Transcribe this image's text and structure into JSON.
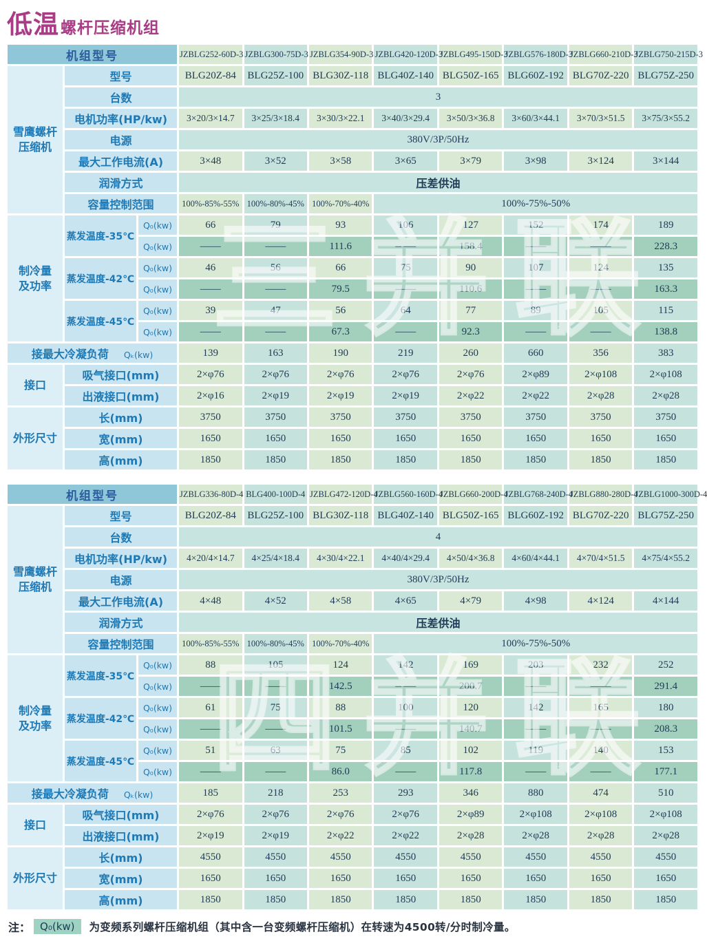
{
  "title": {
    "highlight": "低温",
    "rest": "螺杆压缩机组"
  },
  "colors": {
    "title_magenta": "#a83c85",
    "header_blue": "#8fc7d9",
    "label_blue_text": "#1e79b4",
    "label_bg": "#c8e4f0",
    "group_bg": "#dceef6",
    "stripe_green": "#d9e9d4",
    "stripe_cyan": "#c6e2dc",
    "dark_teal_row": "#a3cfbd",
    "merged_row_bg": "#c8e4e1",
    "data_text": "#1e3a54",
    "note_highlight_bg": "#9ed3c2",
    "watermark_white": "#ffffff"
  },
  "tables": [
    {
      "watermark": "三并联",
      "model_header": {
        "label": "机组型号",
        "values": [
          "JZBLG252-60D-3",
          "JZBLG300-75D-3",
          "JZBLG354-90D-3",
          "JZBLG420-120D-3",
          "JZBLG495-150D-3",
          "JZBLG576-180D-3",
          "JZBLG660-210D-3",
          "JZBLG750-215D-3"
        ]
      },
      "compressor": {
        "group_label": "雪鹰螺杆\n压缩机",
        "model": {
          "label": "型号",
          "values": [
            "BLG20Z-84",
            "BLG25Z-100",
            "BLG30Z-118",
            "BLG40Z-140",
            "BLG50Z-165",
            "BLG60Z-192",
            "BLG70Z-220",
            "BLG75Z-250"
          ]
        },
        "units": {
          "label": "台数",
          "value": "3"
        },
        "motor_power": {
          "label": "电机功率(HP/kw)",
          "values": [
            "3×20/3×14.7",
            "3×25/3×18.4",
            "3×30/3×22.1",
            "3×40/3×29.4",
            "3×50/3×36.8",
            "3×60/3×44.1",
            "3×70/3×51.5",
            "3×75/3×55.2"
          ]
        },
        "power_supply": {
          "label": "电源",
          "value": "380V/3P/50Hz"
        },
        "max_current": {
          "label": "最大工作电流(A)",
          "values": [
            "3×48",
            "3×52",
            "3×58",
            "3×65",
            "3×79",
            "3×98",
            "3×124",
            "3×144"
          ]
        },
        "lubrication": {
          "label": "润滑方式",
          "value": "压差供油"
        },
        "capacity_control": {
          "label": "容量控制范围",
          "values": [
            "100%-85%-55%",
            "100%-80%-45%",
            "100%-70%-40%"
          ],
          "merged_value": "100%-75%-50%"
        }
      },
      "cooling": {
        "group_label": "制冷量\n及功率",
        "temps": [
          {
            "label": "蒸发温度-35℃",
            "q_label": "Q₀(kw)",
            "fixed": [
              "66",
              "79",
              "93",
              "106",
              "127",
              "152",
              "174",
              "189"
            ],
            "inverter": [
              "——",
              "——",
              "111.6",
              "——",
              "158.4",
              "——",
              "——",
              "228.3"
            ]
          },
          {
            "label": "蒸发温度-42℃",
            "q_label": "Q₀(kw)",
            "fixed": [
              "46",
              "56",
              "66",
              "75",
              "90",
              "107",
              "124",
              "135"
            ],
            "inverter": [
              "——",
              "——",
              "79.5",
              "——",
              "110.6",
              "——",
              "——",
              "163.3"
            ]
          },
          {
            "label": "蒸发温度-45℃",
            "q_label": "Q₀(kw)",
            "fixed": [
              "39",
              "47",
              "56",
              "64",
              "77",
              "89",
              "105",
              "115"
            ],
            "inverter": [
              "——",
              "——",
              "67.3",
              "——",
              "92.3",
              "——",
              "——",
              "138.8"
            ]
          }
        ]
      },
      "condenser": {
        "label": "接最大冷凝负荷",
        "q_label": "Qₖ(kw)",
        "values": [
          "139",
          "163",
          "190",
          "219",
          "260",
          "660",
          "356",
          "383"
        ]
      },
      "ports": {
        "group_label": "接口",
        "rows": [
          {
            "label": "吸气接口(mm)",
            "values": [
              "2×φ76",
              "2×φ76",
              "2×φ76",
              "2×φ76",
              "2×φ76",
              "2×φ89",
              "2×φ108",
              "2×φ108"
            ]
          },
          {
            "label": "出液接口(mm)",
            "values": [
              "2×φ16",
              "2×φ19",
              "2×φ19",
              "2×φ19",
              "2×φ22",
              "2×φ22",
              "2×φ28",
              "2×φ28"
            ]
          }
        ]
      },
      "dimensions": {
        "group_label": "外形尺寸",
        "rows": [
          {
            "label": "长(mm)",
            "values": [
              "3750",
              "3750",
              "3750",
              "3750",
              "3750",
              "3750",
              "3750",
              "3750"
            ]
          },
          {
            "label": "宽(mm)",
            "values": [
              "1650",
              "1650",
              "1650",
              "1650",
              "1650",
              "1650",
              "1650",
              "1650"
            ]
          },
          {
            "label": "高(mm)",
            "values": [
              "1850",
              "1850",
              "1850",
              "1850",
              "1850",
              "1850",
              "1850",
              "1850"
            ]
          }
        ]
      }
    },
    {
      "watermark": "四并联",
      "model_header": {
        "label": "机组型号",
        "values": [
          "JZBLG336-80D-4",
          "BLG400-100D-4",
          "JZBLG472-120D-4",
          "JZBLG560-160D-4",
          "JZBLG660-200D-4",
          "JZBLG768-240D-4",
          "JZBLG880-280D-4",
          "JZBLG1000-300D-4"
        ]
      },
      "compressor": {
        "group_label": "雪鹰螺杆\n压缩机",
        "model": {
          "label": "型号",
          "values": [
            "BLG20Z-84",
            "BLG25Z-100",
            "BLG30Z-118",
            "BLG40Z-140",
            "BLG50Z-165",
            "BLG60Z-192",
            "BLG70Z-220",
            "BLG75Z-250"
          ]
        },
        "units": {
          "label": "台数",
          "value": "4"
        },
        "motor_power": {
          "label": "电机功率(HP/kw)",
          "values": [
            "4×20/4×14.7",
            "4×25/4×18.4",
            "4×30/4×22.1",
            "4×40/4×29.4",
            "4×50/4×36.8",
            "4×60/4×44.1",
            "4×70/4×51.5",
            "4×75/4×55.2"
          ]
        },
        "power_supply": {
          "label": "电源",
          "value": "380V/3P/50Hz"
        },
        "max_current": {
          "label": "最大工作电流(A)",
          "values": [
            "4×48",
            "4×52",
            "4×58",
            "4×65",
            "4×79",
            "4×98",
            "4×124",
            "4×144"
          ]
        },
        "lubrication": {
          "label": "润滑方式",
          "value": "压差供油"
        },
        "capacity_control": {
          "label": "容量控制范围",
          "values": [
            "100%-85%-55%",
            "100%-80%-45%",
            "100%-70%-40%"
          ],
          "merged_value": "100%-75%-50%"
        }
      },
      "cooling": {
        "group_label": "制冷量\n及功率",
        "temps": [
          {
            "label": "蒸发温度-35℃",
            "q_label": "Q₀(kw)",
            "fixed": [
              "88",
              "105",
              "124",
              "142",
              "169",
              "203",
              "232",
              "252"
            ],
            "inverter": [
              "——",
              "——",
              "142.5",
              "——",
              "200.7",
              "——",
              "——",
              "291.4"
            ]
          },
          {
            "label": "蒸发温度-42℃",
            "q_label": "Q₀(kw)",
            "fixed": [
              "61",
              "75",
              "88",
              "100",
              "120",
              "142",
              "165",
              "180"
            ],
            "inverter": [
              "——",
              "——",
              "101.5",
              "——",
              "140.7",
              "——",
              "——",
              "208.3"
            ]
          },
          {
            "label": "蒸发温度-45℃",
            "q_label": "Q₀(kw)",
            "fixed": [
              "51",
              "63",
              "75",
              "85",
              "102",
              "119",
              "140",
              "153"
            ],
            "inverter": [
              "——",
              "——",
              "86.0",
              "——",
              "117.8",
              "——",
              "——",
              "177.1"
            ]
          }
        ]
      },
      "condenser": {
        "label": "接最大冷凝负荷",
        "q_label": "Qₖ(kw)",
        "values": [
          "185",
          "218",
          "253",
          "293",
          "346",
          "880",
          "474",
          "510"
        ]
      },
      "ports": {
        "group_label": "接口",
        "rows": [
          {
            "label": "吸气接口(mm)",
            "values": [
              "2×φ76",
              "2×φ76",
              "2×φ76",
              "2×φ76",
              "2×φ89",
              "2×φ108",
              "2×φ108",
              "2×φ108"
            ]
          },
          {
            "label": "出液接口(mm)",
            "values": [
              "2×φ19",
              "2×φ19",
              "2×φ22",
              "2×φ22",
              "2×φ28",
              "2×φ28",
              "2×φ28",
              "2×φ28"
            ]
          }
        ]
      },
      "dimensions": {
        "group_label": "外形尺寸",
        "rows": [
          {
            "label": "长(mm)",
            "values": [
              "4550",
              "4550",
              "4550",
              "4550",
              "4550",
              "4550",
              "4550",
              "4550"
            ]
          },
          {
            "label": "宽(mm)",
            "values": [
              "1650",
              "1650",
              "1650",
              "1650",
              "1650",
              "1650",
              "1650",
              "1650"
            ]
          },
          {
            "label": "高(mm)",
            "values": [
              "1850",
              "1850",
              "1850",
              "1850",
              "1850",
              "1850",
              "1850",
              "1850"
            ]
          }
        ]
      }
    }
  ],
  "note": {
    "prefix": "注：",
    "highlight": "Q₀(kw)",
    "text": "为变频系列螺杆压缩机组（其中含一台变频螺杆压缩机）在转速为4500转/分时制冷量。"
  }
}
